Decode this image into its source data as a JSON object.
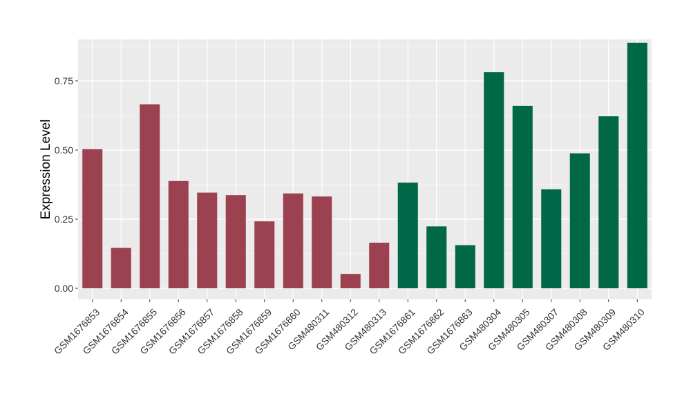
{
  "chart_data": {
    "type": "bar",
    "title": "",
    "xlabel": "",
    "ylabel": "Expression Level",
    "ylim": [
      -0.04,
      0.9
    ],
    "yticks": [
      0.0,
      0.25,
      0.5,
      0.75
    ],
    "ytick_labels": [
      "0.00",
      "0.25",
      "0.50",
      "0.75"
    ],
    "grid": true,
    "legend": "none",
    "categories": [
      "GSM1676853",
      "GSM1676854",
      "GSM1676855",
      "GSM1676856",
      "GSM1676857",
      "GSM1676858",
      "GSM1676859",
      "GSM1676860",
      "GSM480311",
      "GSM480312",
      "GSM480313",
      "GSM1676861",
      "GSM1676862",
      "GSM1676863",
      "GSM480304",
      "GSM480305",
      "GSM480307",
      "GSM480308",
      "GSM480309",
      "GSM480310"
    ],
    "values": [
      0.503,
      0.146,
      0.665,
      0.388,
      0.346,
      0.337,
      0.242,
      0.343,
      0.332,
      0.052,
      0.165,
      0.382,
      0.224,
      0.156,
      0.782,
      0.66,
      0.358,
      0.488,
      0.622,
      0.888
    ],
    "bar_colors": [
      "#9b4150",
      "#9b4150",
      "#9b4150",
      "#9b4150",
      "#9b4150",
      "#9b4150",
      "#9b4150",
      "#9b4150",
      "#9b4150",
      "#9b4150",
      "#9b4150",
      "#006846",
      "#006846",
      "#006846",
      "#006846",
      "#006846",
      "#006846",
      "#006846",
      "#006846",
      "#006846"
    ],
    "panel_background": "#ebebeb",
    "grid_color": "#ffffff"
  }
}
